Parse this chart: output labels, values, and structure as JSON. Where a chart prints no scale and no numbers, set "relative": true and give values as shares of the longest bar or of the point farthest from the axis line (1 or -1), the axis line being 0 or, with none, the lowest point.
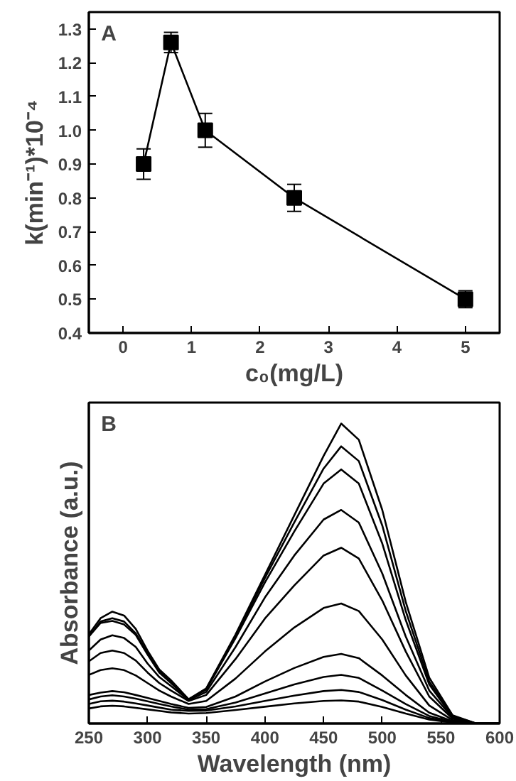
{
  "chart_data": [
    {
      "type": "line",
      "xlabel": "c₀(mg/L)",
      "ylabel": "k(min⁻¹)*10⁻⁴",
      "annotations": [
        "A"
      ],
      "x": [
        0.3,
        0.7,
        1.2,
        2.5,
        5
      ],
      "series": [
        {
          "color": "#000000",
          "values": [
            0.9,
            1.26,
            1.0,
            0.8,
            0.5
          ],
          "errors": [
            0.045,
            0.03,
            0.05,
            0.04,
            0.025
          ]
        }
      ],
      "marker": "square",
      "xlim": [
        -0.5,
        5.5
      ],
      "ylim": [
        0.4,
        1.35
      ],
      "xticks": [
        0,
        1,
        2,
        3,
        4,
        5
      ],
      "yticks": [
        0.4,
        0.5,
        0.6,
        0.7,
        0.8,
        0.9,
        {
          "value": 1.0,
          "label": "1.0"
        },
        1.1,
        1.2,
        1.3
      ],
      "grid": false
    },
    {
      "type": "line",
      "xlabel": "Wavelength (nm)",
      "ylabel": "Absorbance (a.u.)",
      "annotations": [
        "B"
      ],
      "relative": true,
      "x": [
        250,
        260,
        270,
        280,
        290,
        300,
        310,
        320,
        335,
        350,
        375,
        400,
        425,
        450,
        465,
        480,
        500,
        520,
        540,
        560,
        580,
        600
      ],
      "series": [
        {
          "color": "#000000",
          "values": [
            0.297,
            0.351,
            0.373,
            0.36,
            0.315,
            0.243,
            0.18,
            0.144,
            0.081,
            0.117,
            0.297,
            0.495,
            0.694,
            0.892,
            1.0,
            0.946,
            0.712,
            0.405,
            0.153,
            0.027,
            0,
            0
          ]
        },
        {
          "color": "#000000",
          "values": [
            0.29,
            0.34,
            0.351,
            0.34,
            0.3,
            0.235,
            0.175,
            0.14,
            0.08,
            0.115,
            0.29,
            0.485,
            0.67,
            0.85,
            0.924,
            0.875,
            0.66,
            0.375,
            0.14,
            0.025,
            0,
            0
          ]
        },
        {
          "color": "#000000",
          "values": [
            0.29,
            0.335,
            0.342,
            0.33,
            0.295,
            0.23,
            0.17,
            0.135,
            0.08,
            0.113,
            0.285,
            0.47,
            0.64,
            0.8,
            0.847,
            0.8,
            0.6,
            0.345,
            0.13,
            0.022,
            0,
            0
          ]
        },
        {
          "color": "#000000",
          "values": [
            0.243,
            0.28,
            0.294,
            0.285,
            0.255,
            0.2,
            0.155,
            0.125,
            0.078,
            0.105,
            0.255,
            0.42,
            0.56,
            0.68,
            0.712,
            0.67,
            0.5,
            0.29,
            0.11,
            0.02,
            0,
            0
          ]
        },
        {
          "color": "#000000",
          "values": [
            0.207,
            0.235,
            0.243,
            0.235,
            0.21,
            0.17,
            0.135,
            0.11,
            0.075,
            0.095,
            0.215,
            0.35,
            0.46,
            0.56,
            0.586,
            0.55,
            0.41,
            0.24,
            0.09,
            0.016,
            0,
            0
          ]
        },
        {
          "color": "#000000",
          "values": [
            0.162,
            0.178,
            0.184,
            0.178,
            0.16,
            0.135,
            0.11,
            0.09,
            0.065,
            0.075,
            0.15,
            0.24,
            0.32,
            0.385,
            0.4,
            0.375,
            0.28,
            0.16,
            0.06,
            0.011,
            0,
            0
          ]
        },
        {
          "color": "#000000",
          "values": [
            0.095,
            0.103,
            0.108,
            0.104,
            0.095,
            0.085,
            0.075,
            0.065,
            0.052,
            0.055,
            0.09,
            0.14,
            0.185,
            0.222,
            0.232,
            0.218,
            0.16,
            0.095,
            0.036,
            0.007,
            0,
            0
          ]
        },
        {
          "color": "#000000",
          "values": [
            0.08,
            0.09,
            0.094,
            0.09,
            0.083,
            0.074,
            0.065,
            0.057,
            0.046,
            0.048,
            0.07,
            0.1,
            0.13,
            0.155,
            0.162,
            0.152,
            0.11,
            0.065,
            0.025,
            0.005,
            0,
            0
          ]
        },
        {
          "color": "#000000",
          "values": [
            0.065,
            0.074,
            0.076,
            0.073,
            0.067,
            0.06,
            0.053,
            0.046,
            0.042,
            0.043,
            0.057,
            0.075,
            0.093,
            0.108,
            0.112,
            0.105,
            0.078,
            0.046,
            0.018,
            0.004,
            0,
            0
          ]
        },
        {
          "color": "#000000",
          "values": [
            0.05,
            0.057,
            0.059,
            0.057,
            0.052,
            0.047,
            0.042,
            0.037,
            0.033,
            0.035,
            0.045,
            0.056,
            0.067,
            0.075,
            0.077,
            0.073,
            0.055,
            0.033,
            0.013,
            0.003,
            0,
            0
          ]
        }
      ],
      "marker": "none",
      "xlim": [
        250,
        600
      ],
      "xticks": [
        250,
        300,
        350,
        400,
        450,
        500,
        550,
        600
      ],
      "grid": false
    }
  ]
}
